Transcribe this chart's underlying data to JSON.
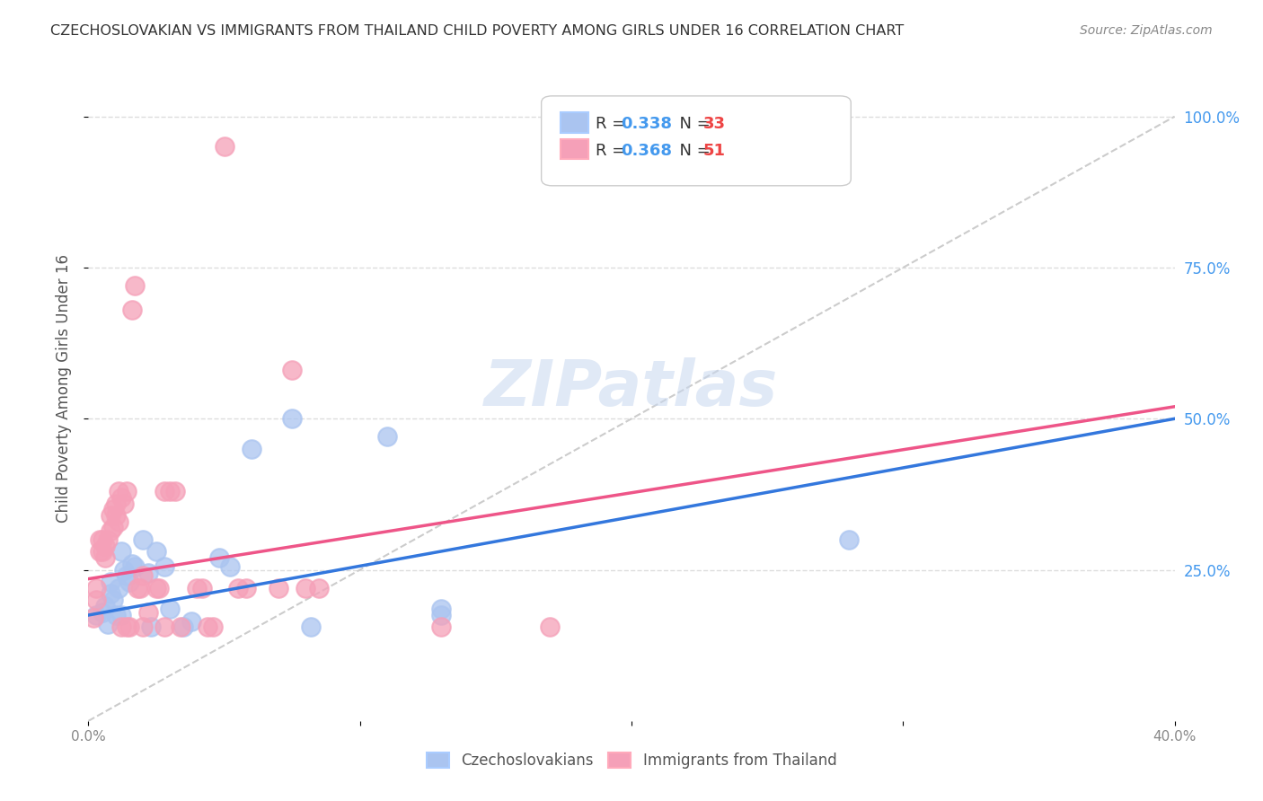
{
  "title": "CZECHOSLOVAKIAN VS IMMIGRANTS FROM THAILAND CHILD POVERTY AMONG GIRLS UNDER 16 CORRELATION CHART",
  "source": "Source: ZipAtlas.com",
  "ylabel": "Child Poverty Among Girls Under 16",
  "xlim": [
    0.0,
    0.4
  ],
  "ylim": [
    0.0,
    1.1
  ],
  "group1_label": "Czechoslovakians",
  "group1_color": "#aac4f0",
  "group1_R": "0.338",
  "group1_N": "33",
  "group2_label": "Immigrants from Thailand",
  "group2_color": "#f5a0b8",
  "group2_R": "0.368",
  "group2_N": "51",
  "legend_R_color": "#4499ee",
  "legend_N_color": "#ee4444",
  "watermark": "ZIPatlas",
  "background_color": "#ffffff",
  "grid_color": "#dddddd",
  "blue_scatter": [
    [
      0.003,
      0.175
    ],
    [
      0.005,
      0.18
    ],
    [
      0.006,
      0.19
    ],
    [
      0.007,
      0.16
    ],
    [
      0.008,
      0.21
    ],
    [
      0.008,
      0.23
    ],
    [
      0.009,
      0.2
    ],
    [
      0.01,
      0.175
    ],
    [
      0.011,
      0.22
    ],
    [
      0.012,
      0.175
    ],
    [
      0.012,
      0.28
    ],
    [
      0.013,
      0.25
    ],
    [
      0.014,
      0.24
    ],
    [
      0.015,
      0.23
    ],
    [
      0.016,
      0.26
    ],
    [
      0.017,
      0.255
    ],
    [
      0.02,
      0.3
    ],
    [
      0.022,
      0.245
    ],
    [
      0.023,
      0.155
    ],
    [
      0.025,
      0.28
    ],
    [
      0.028,
      0.255
    ],
    [
      0.03,
      0.185
    ],
    [
      0.035,
      0.155
    ],
    [
      0.038,
      0.165
    ],
    [
      0.048,
      0.27
    ],
    [
      0.052,
      0.255
    ],
    [
      0.06,
      0.45
    ],
    [
      0.075,
      0.5
    ],
    [
      0.082,
      0.155
    ],
    [
      0.11,
      0.47
    ],
    [
      0.13,
      0.185
    ],
    [
      0.13,
      0.175
    ],
    [
      0.28,
      0.3
    ]
  ],
  "pink_scatter": [
    [
      0.002,
      0.17
    ],
    [
      0.003,
      0.2
    ],
    [
      0.003,
      0.22
    ],
    [
      0.004,
      0.28
    ],
    [
      0.004,
      0.3
    ],
    [
      0.005,
      0.28
    ],
    [
      0.005,
      0.3
    ],
    [
      0.006,
      0.27
    ],
    [
      0.006,
      0.29
    ],
    [
      0.007,
      0.3
    ],
    [
      0.008,
      0.315
    ],
    [
      0.008,
      0.34
    ],
    [
      0.009,
      0.32
    ],
    [
      0.009,
      0.35
    ],
    [
      0.01,
      0.36
    ],
    [
      0.01,
      0.34
    ],
    [
      0.011,
      0.33
    ],
    [
      0.011,
      0.38
    ],
    [
      0.012,
      0.155
    ],
    [
      0.012,
      0.37
    ],
    [
      0.013,
      0.36
    ],
    [
      0.014,
      0.155
    ],
    [
      0.014,
      0.38
    ],
    [
      0.015,
      0.155
    ],
    [
      0.016,
      0.68
    ],
    [
      0.017,
      0.72
    ],
    [
      0.018,
      0.22
    ],
    [
      0.019,
      0.22
    ],
    [
      0.02,
      0.155
    ],
    [
      0.02,
      0.24
    ],
    [
      0.022,
      0.18
    ],
    [
      0.025,
      0.22
    ],
    [
      0.026,
      0.22
    ],
    [
      0.028,
      0.155
    ],
    [
      0.028,
      0.38
    ],
    [
      0.03,
      0.38
    ],
    [
      0.032,
      0.38
    ],
    [
      0.034,
      0.155
    ],
    [
      0.04,
      0.22
    ],
    [
      0.042,
      0.22
    ],
    [
      0.044,
      0.155
    ],
    [
      0.046,
      0.155
    ],
    [
      0.05,
      0.95
    ],
    [
      0.055,
      0.22
    ],
    [
      0.058,
      0.22
    ],
    [
      0.07,
      0.22
    ],
    [
      0.075,
      0.58
    ],
    [
      0.08,
      0.22
    ],
    [
      0.085,
      0.22
    ],
    [
      0.13,
      0.155
    ],
    [
      0.17,
      0.155
    ]
  ],
  "blue_line": {
    "x0": 0.0,
    "y0": 0.175,
    "x1": 0.4,
    "y1": 0.5
  },
  "pink_line": {
    "x0": 0.0,
    "y0": 0.235,
    "x1": 0.4,
    "y1": 0.52
  },
  "diag_line": {
    "x0": 0.0,
    "y0": 0.0,
    "x1": 0.4,
    "y1": 1.0
  }
}
